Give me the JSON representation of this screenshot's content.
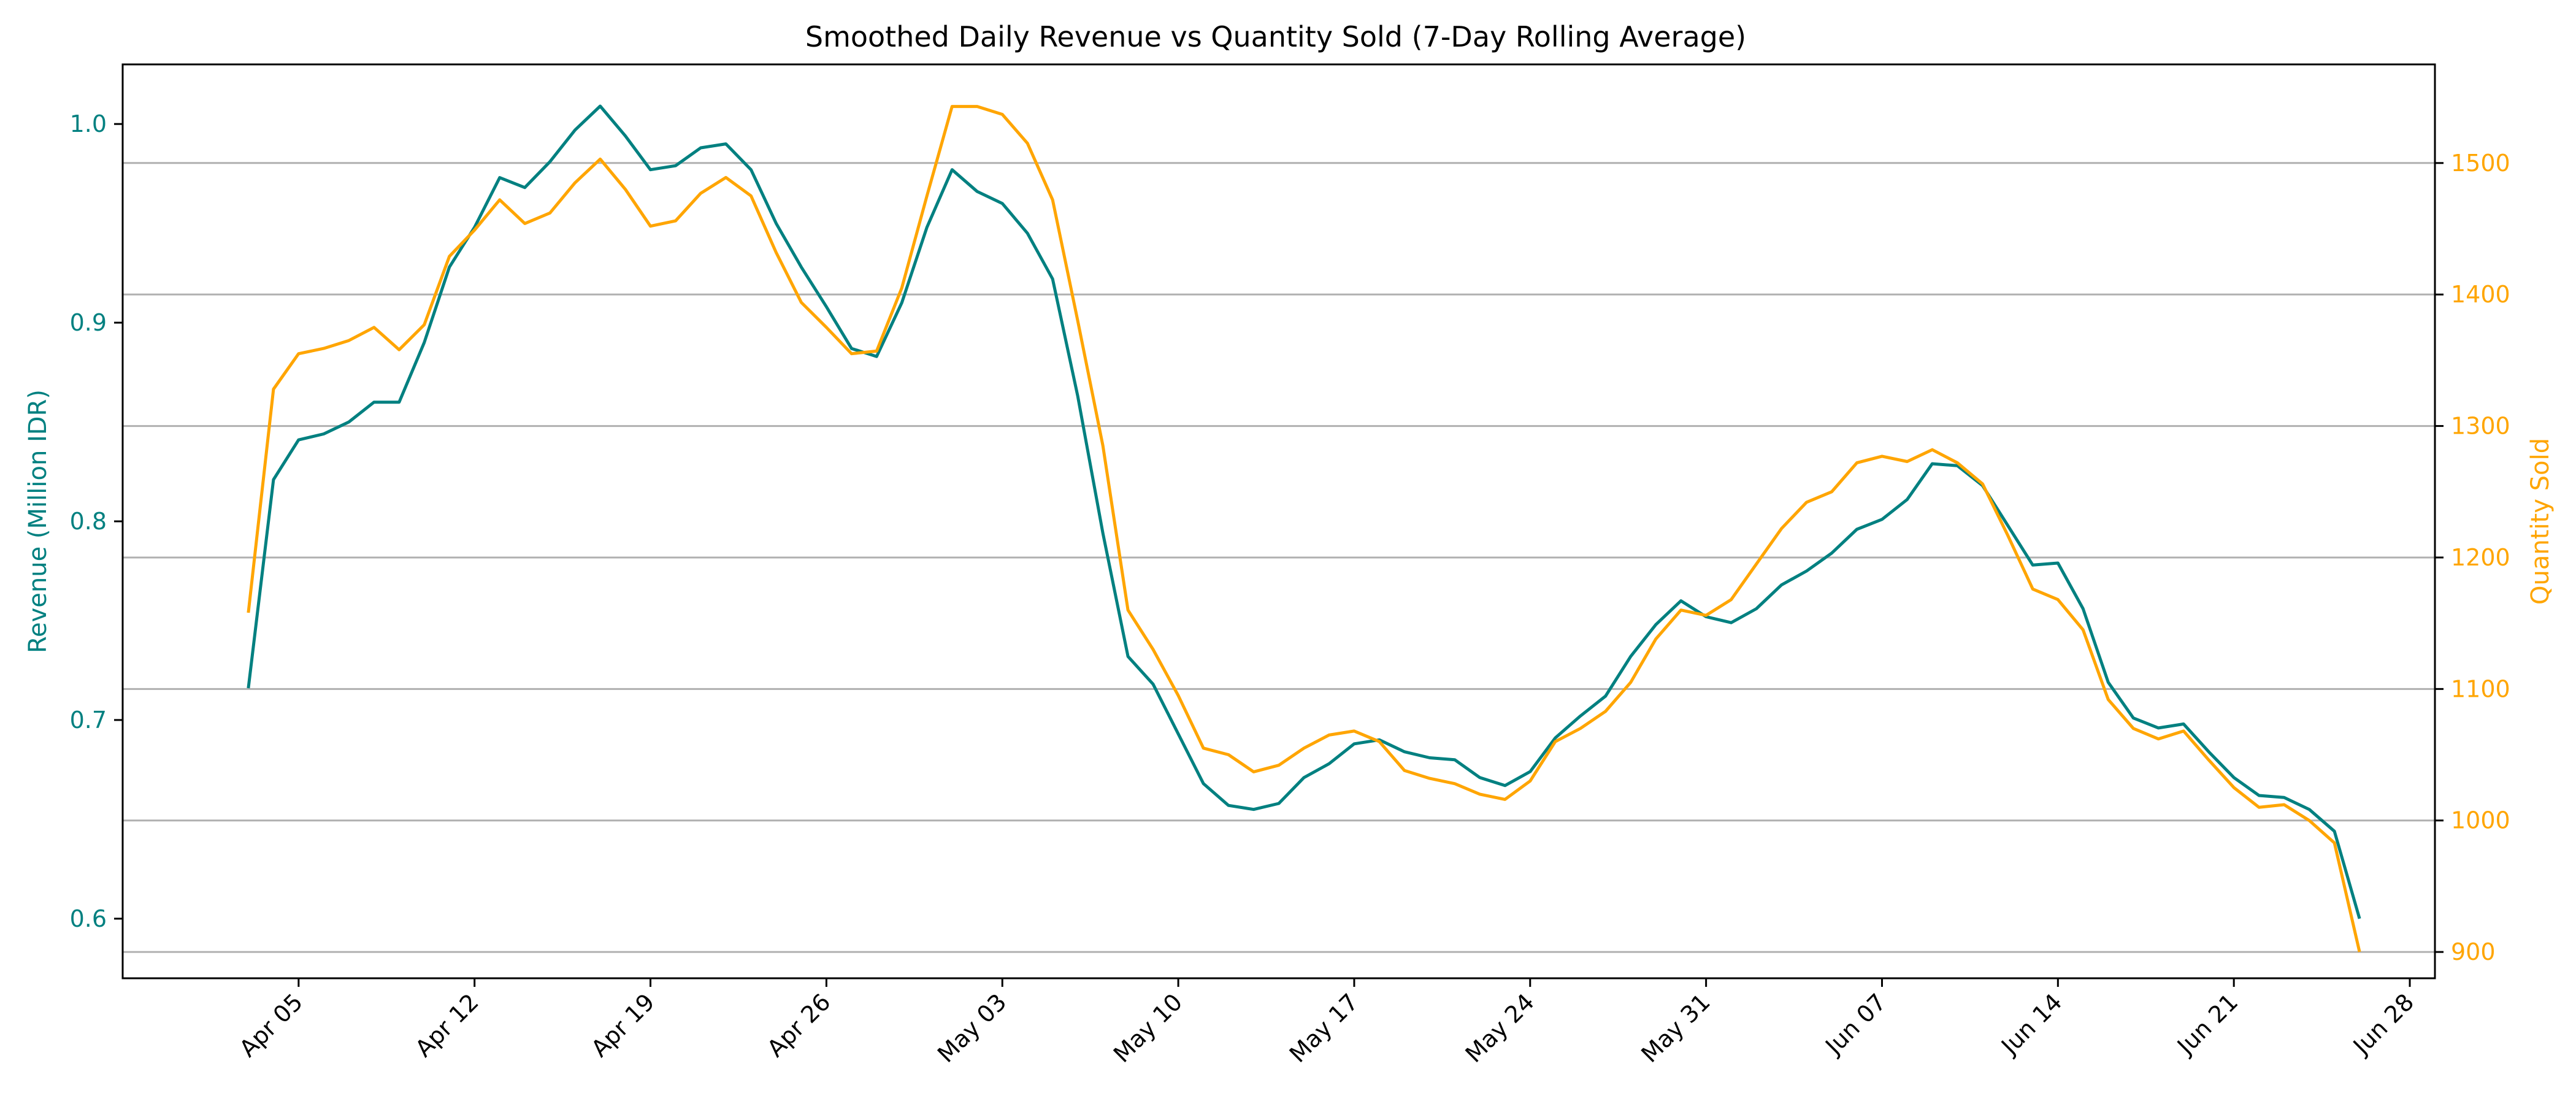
{
  "chart_data": {
    "type": "line",
    "title": "Smoothed Daily Revenue vs Quantity Sold (7-Day Rolling Average)",
    "xlabel": "",
    "x_start": "2025-04-03",
    "x_ticks": [
      "Apr 05",
      "Apr 12",
      "Apr 19",
      "Apr 26",
      "May 03",
      "May 10",
      "May 17",
      "May 24",
      "May 31",
      "Jun 07",
      "Jun 14",
      "Jun 21",
      "Jun 28"
    ],
    "x_tick_dates": [
      "2025-04-05",
      "2025-04-12",
      "2025-04-19",
      "2025-04-26",
      "2025-05-03",
      "2025-05-10",
      "2025-05-17",
      "2025-05-24",
      "2025-05-31",
      "2025-06-07",
      "2025-06-14",
      "2025-06-21",
      "2025-06-28"
    ],
    "xlim": [
      "2025-03-29",
      "2025-06-29"
    ],
    "grid": "horizontal, right axis",
    "colors": {
      "revenue": "#008080",
      "quantity": "#FFA500"
    },
    "y_left": {
      "label": "Revenue (Million IDR)",
      "lim": [
        0.57,
        1.03
      ],
      "ticks": [
        "0.6",
        "0.7",
        "0.8",
        "0.9",
        "1.0"
      ],
      "tick_values": [
        0.6,
        0.7,
        0.8,
        0.9,
        1.0
      ]
    },
    "y_right": {
      "label": "Quantity Sold",
      "lim": [
        880,
        1575
      ],
      "ticks": [
        "900",
        "1000",
        "1100",
        "1200",
        "1300",
        "1400",
        "1500"
      ],
      "tick_values": [
        900,
        1000,
        1100,
        1200,
        1300,
        1400,
        1500
      ]
    },
    "series": [
      {
        "name": "Revenue",
        "axis": "left",
        "values": [
          0.716,
          0.821,
          0.841,
          0.844,
          0.85,
          0.86,
          0.86,
          0.89,
          0.928,
          0.948,
          0.973,
          0.968,
          0.981,
          0.997,
          1.009,
          0.994,
          0.977,
          0.979,
          0.988,
          0.99,
          0.977,
          0.95,
          0.928,
          0.908,
          0.887,
          0.883,
          0.91,
          0.948,
          0.977,
          0.966,
          0.96,
          0.945,
          0.922,
          0.863,
          0.794,
          0.732,
          0.718,
          0.693,
          0.668,
          0.657,
          0.655,
          0.658,
          0.671,
          0.678,
          0.688,
          0.69,
          0.684,
          0.681,
          0.68,
          0.671,
          0.667,
          0.674,
          0.691,
          0.702,
          0.712,
          0.732,
          0.748,
          0.76,
          0.752,
          0.749,
          0.756,
          0.768,
          0.775,
          0.784,
          0.796,
          0.801,
          0.811,
          0.829,
          0.828,
          0.818,
          0.798,
          0.778,
          0.779,
          0.756,
          0.719,
          0.701,
          0.696,
          0.698,
          0.684,
          0.671,
          0.662,
          0.661,
          0.655,
          0.644,
          0.6
        ]
      },
      {
        "name": "Quantity Sold",
        "axis": "right",
        "values": [
          1158,
          1328,
          1355,
          1359,
          1365,
          1375,
          1358,
          1377,
          1429,
          1449,
          1472,
          1454,
          1462,
          1485,
          1503,
          1480,
          1452,
          1456,
          1477,
          1489,
          1475,
          1432,
          1394,
          1375,
          1355,
          1357,
          1405,
          1475,
          1543,
          1543,
          1537,
          1515,
          1472,
          1380,
          1285,
          1160,
          1130,
          1095,
          1055,
          1050,
          1037,
          1042,
          1055,
          1065,
          1068,
          1060,
          1038,
          1032,
          1028,
          1020,
          1016,
          1030,
          1060,
          1070,
          1083,
          1105,
          1138,
          1160,
          1156,
          1168,
          1195,
          1222,
          1242,
          1250,
          1272,
          1277,
          1273,
          1282,
          1272,
          1256,
          1217,
          1176,
          1168,
          1145,
          1092,
          1070,
          1062,
          1068,
          1046,
          1025,
          1010,
          1012,
          1000,
          983,
          900
        ]
      }
    ]
  }
}
